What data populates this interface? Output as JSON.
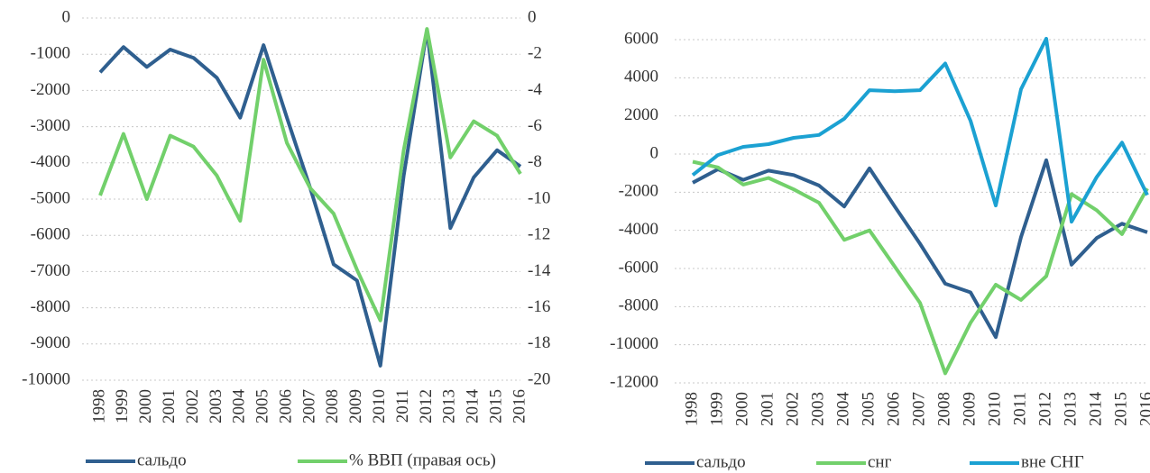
{
  "chart_data": [
    {
      "type": "line",
      "categories": [
        "1998",
        "1999",
        "2000",
        "2001",
        "2002",
        "2003",
        "2004",
        "2005",
        "2006",
        "2007",
        "2008",
        "2009",
        "2010",
        "2011",
        "2012",
        "2013",
        "2014",
        "2015",
        "2016"
      ],
      "ylim": [
        -10000,
        0
      ],
      "yticks": [
        0,
        -1000,
        -2000,
        -3000,
        -4000,
        -5000,
        -6000,
        -7000,
        -8000,
        -9000,
        -10000
      ],
      "y2lim": [
        -20,
        0
      ],
      "y2ticks": [
        0,
        -2,
        -4,
        -6,
        -8,
        -10,
        -12,
        -14,
        -16,
        -18,
        -20
      ],
      "grid": true,
      "legend": "bottom",
      "series": [
        {
          "name": "сальдо",
          "color": "#2f5f8f",
          "values": [
            -1500,
            -800,
            -1350,
            -870,
            -1100,
            -1650,
            -2750,
            -750,
            -2750,
            -4700,
            -6800,
            -7250,
            -9600,
            -4350,
            -320,
            -5800,
            -4400,
            -3650,
            -4100
          ]
        },
        {
          "name": "% ВВП (правая ось)",
          "color": "#72d06b",
          "axis": "y2",
          "values": [
            -9.8,
            -6.4,
            -10.0,
            -6.5,
            -7.1,
            -8.7,
            -11.2,
            -2.3,
            -6.9,
            -9.4,
            -10.8,
            -13.9,
            -16.7,
            -7.3,
            -0.6,
            -7.7,
            -5.7,
            -6.5,
            -8.6
          ]
        }
      ]
    },
    {
      "type": "line",
      "categories": [
        "1998",
        "1999",
        "2000",
        "2001",
        "2002",
        "2003",
        "2004",
        "2005",
        "2006",
        "2007",
        "2008",
        "2009",
        "2010",
        "2011",
        "2012",
        "2013",
        "2014",
        "2015",
        "2016"
      ],
      "ylim": [
        -12000,
        6000
      ],
      "yticks": [
        6000,
        4000,
        2000,
        0,
        -2000,
        -4000,
        -6000,
        -8000,
        -10000,
        -12000
      ],
      "grid": true,
      "legend": "bottom",
      "series": [
        {
          "name": "сальдо",
          "color": "#2f5f8f",
          "values": [
            -1500,
            -800,
            -1350,
            -870,
            -1100,
            -1650,
            -2750,
            -750,
            -2750,
            -4700,
            -6800,
            -7250,
            -9600,
            -4350,
            -320,
            -5800,
            -4400,
            -3650,
            -4100
          ]
        },
        {
          "name": "снг",
          "color": "#72d06b",
          "values": [
            -400,
            -700,
            -1600,
            -1250,
            -1850,
            -2550,
            -4500,
            -4000,
            -5900,
            -7800,
            -11500,
            -8850,
            -6850,
            -7650,
            -6400,
            -2100,
            -2950,
            -4200,
            -1800
          ]
        },
        {
          "name": "вне СНГ",
          "color": "#1ba1d2",
          "values": [
            -1100,
            -50,
            380,
            520,
            850,
            1000,
            1850,
            3350,
            3300,
            3350,
            4750,
            1750,
            -2700,
            3400,
            6050,
            -3550,
            -1200,
            600,
            -2150
          ]
        }
      ]
    }
  ]
}
